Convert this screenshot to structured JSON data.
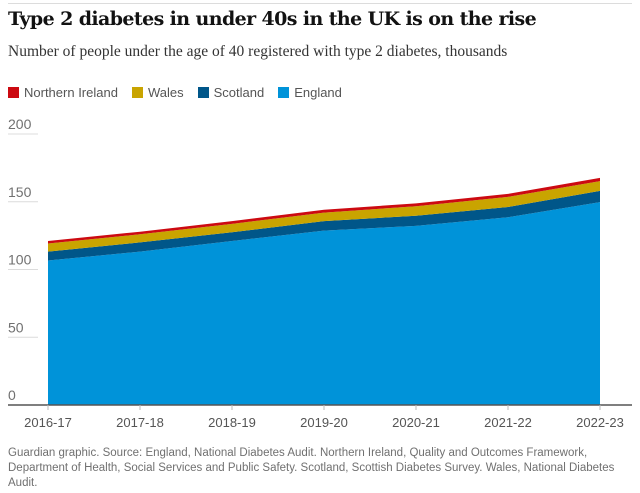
{
  "title": "Type 2 diabetes in under 40s in the UK is on the rise",
  "subtitle": "Number of people under the age of 40 registered with type 2 diabetes, thousands",
  "source": "Guardian graphic. Source: England, National Diabetes Audit. Northern Ireland, Quality and Outcomes Framework, Department of Health, Social Services and Public Safety. Scotland, Scottish Diabetes Survey. Wales, National Diabetes Audit.",
  "chart_data": {
    "type": "area",
    "stacked": true,
    "categories": [
      "2016-17",
      "2017-18",
      "2018-19",
      "2019-20",
      "2020-21",
      "2021-22",
      "2022-23"
    ],
    "series": [
      {
        "name": "England",
        "color": "#0093d9",
        "values": [
          106.6,
          113.2,
          121.0,
          128.7,
          132.2,
          138.6,
          149.7
        ]
      },
      {
        "name": "Scotland",
        "color": "#005689",
        "values": [
          6.6,
          6.8,
          6.5,
          7.0,
          7.5,
          7.5,
          8.3
        ]
      },
      {
        "name": "Wales",
        "color": "#c9a400",
        "values": [
          6.0,
          6.0,
          6.2,
          6.3,
          7.0,
          7.5,
          7.2
        ]
      },
      {
        "name": "Northern Ireland",
        "color": "#cc0a11",
        "values": [
          1.8,
          1.9,
          2.0,
          2.1,
          2.1,
          2.2,
          2.4
        ]
      }
    ],
    "legend_order": [
      "Northern Ireland",
      "Wales",
      "Scotland",
      "England"
    ],
    "legend_placement": "top-left",
    "ylim": [
      0,
      200
    ],
    "yticks": [
      0,
      50,
      100,
      150,
      200
    ],
    "grid": true
  }
}
